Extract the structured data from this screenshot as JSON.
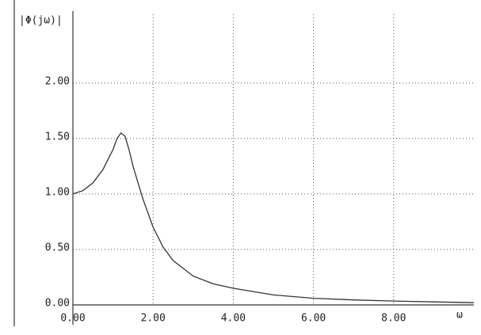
{
  "chart_data": {
    "type": "line",
    "ylabel": "|Φ(jω)|",
    "xlabel": "ω",
    "x": [
      0,
      0.25,
      0.5,
      0.75,
      1.0,
      1.1,
      1.2,
      1.3,
      1.4,
      1.5,
      1.75,
      2.0,
      2.25,
      2.5,
      3.0,
      3.5,
      4.0,
      5.0,
      6.0,
      7.0,
      8.0,
      9.0,
      10.0
    ],
    "values": [
      1.0,
      1.03,
      1.1,
      1.22,
      1.4,
      1.5,
      1.55,
      1.52,
      1.4,
      1.25,
      0.95,
      0.7,
      0.52,
      0.4,
      0.26,
      0.19,
      0.15,
      0.09,
      0.06,
      0.045,
      0.035,
      0.027,
      0.02
    ],
    "color": "#333333",
    "xlim": [
      0,
      10
    ],
    "xticks": [
      {
        "value": 0,
        "label": "0.00"
      },
      {
        "value": 2,
        "label": "2.00"
      },
      {
        "value": 4,
        "label": "4.00"
      },
      {
        "value": 6,
        "label": "6.00"
      },
      {
        "value": 8,
        "label": "8.00"
      }
    ],
    "ylim": [
      0,
      2.62
    ],
    "yticks": [
      {
        "value": 0,
        "label": "0.00"
      },
      {
        "value": 0.5,
        "label": "0.50"
      },
      {
        "value": 1.0,
        "label": "1.00"
      },
      {
        "value": 1.5,
        "label": "1.50"
      },
      {
        "value": 2.0,
        "label": "2.00"
      }
    ],
    "grid": true
  }
}
